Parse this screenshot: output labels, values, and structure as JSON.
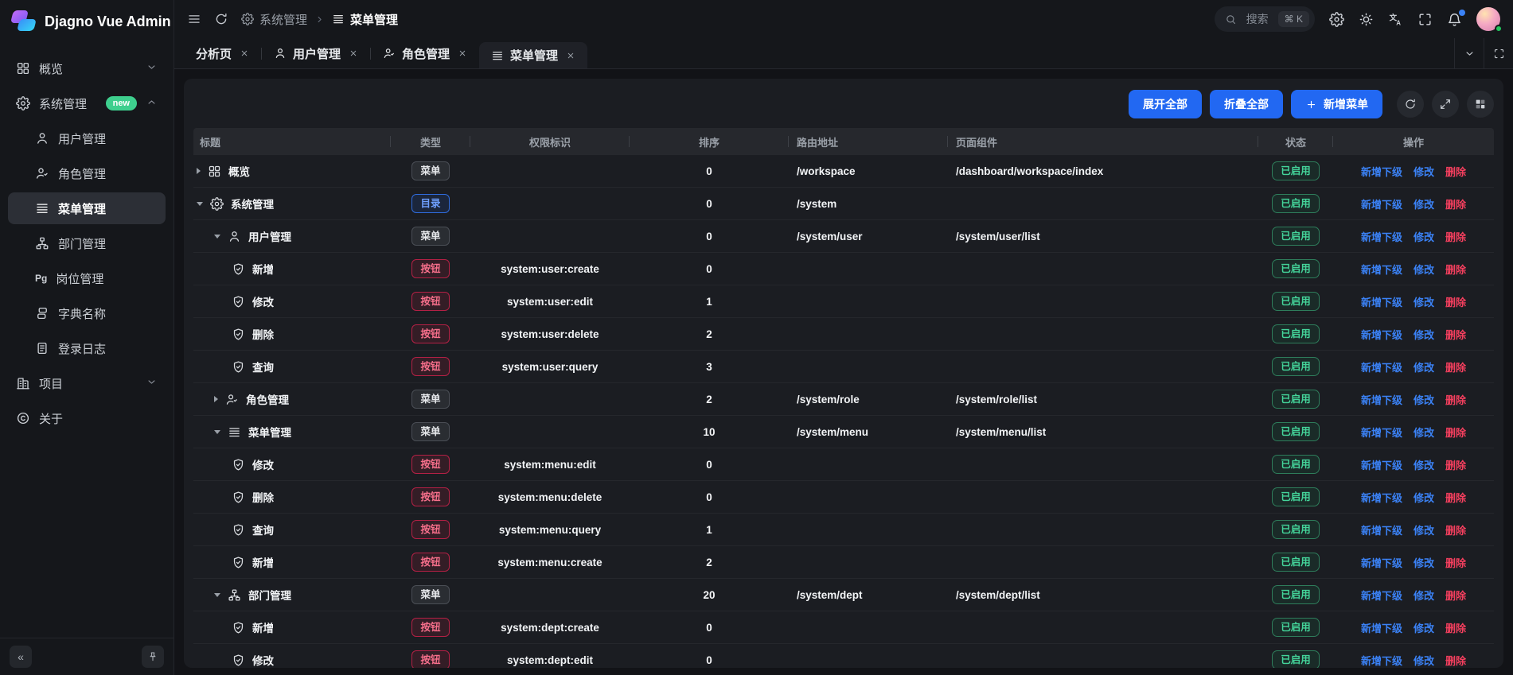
{
  "app": {
    "title": "Djagno Vue Admin"
  },
  "sidebar": {
    "items": [
      {
        "key": "overview",
        "label": "概览",
        "icon": "grid",
        "level": 0,
        "chevron": "down"
      },
      {
        "key": "system",
        "label": "系统管理",
        "icon": "gear",
        "level": 0,
        "chevron": "up",
        "badge": "new"
      },
      {
        "key": "user",
        "label": "用户管理",
        "icon": "user",
        "level": 1
      },
      {
        "key": "role",
        "label": "角色管理",
        "icon": "role",
        "level": 1
      },
      {
        "key": "menu",
        "label": "菜单管理",
        "icon": "menu",
        "level": 1,
        "active": true
      },
      {
        "key": "dept",
        "label": "部门管理",
        "icon": "dept",
        "level": 1
      },
      {
        "key": "post",
        "label": "岗位管理",
        "icon": "post",
        "level": 1
      },
      {
        "key": "dict",
        "label": "字典名称",
        "icon": "dict",
        "level": 1
      },
      {
        "key": "log",
        "label": "登录日志",
        "icon": "log",
        "level": 1
      },
      {
        "key": "project",
        "label": "项目",
        "icon": "project",
        "level": 0,
        "chevron": "down"
      },
      {
        "key": "about",
        "label": "关于",
        "icon": "about",
        "level": 0
      }
    ]
  },
  "topbar": {
    "breadcrumb": [
      {
        "label": "系统管理",
        "icon": "gear"
      },
      {
        "label": "菜单管理",
        "icon": "menu"
      }
    ],
    "search": {
      "placeholder": "搜索",
      "shortcut": "⌘ K"
    }
  },
  "tabs": [
    {
      "key": "analysis",
      "label": "分析页"
    },
    {
      "key": "user",
      "label": "用户管理",
      "icon": "user"
    },
    {
      "key": "role",
      "label": "角色管理",
      "icon": "role"
    },
    {
      "key": "menu",
      "label": "菜单管理",
      "icon": "menu",
      "active": true
    }
  ],
  "toolbar": {
    "expand_all": "展开全部",
    "collapse_all": "折叠全部",
    "add_menu": "新增菜单"
  },
  "table": {
    "columns": [
      "标题",
      "类型",
      "权限标识",
      "排序",
      "路由地址",
      "页面组件",
      "状态",
      "操作"
    ],
    "type_labels": {
      "menu": "菜单",
      "dir": "目录",
      "button": "按钮"
    },
    "status_enabled": "已启用",
    "actions": {
      "add_child": "新增下级",
      "edit": "修改",
      "delete": "删除"
    },
    "rows": [
      {
        "level": 0,
        "arrow": "right",
        "icon": "grid",
        "title": "概览",
        "type": "menu",
        "perm": "",
        "sort": "0",
        "route": "/workspace",
        "component": "/dashboard/workspace/index"
      },
      {
        "level": 0,
        "arrow": "down",
        "icon": "gear",
        "title": "系统管理",
        "type": "dir",
        "perm": "",
        "sort": "0",
        "route": "/system",
        "component": ""
      },
      {
        "level": 1,
        "arrow": "down",
        "icon": "user",
        "title": "用户管理",
        "type": "menu",
        "perm": "",
        "sort": "0",
        "route": "/system/user",
        "component": "/system/user/list"
      },
      {
        "level": 2,
        "arrow": null,
        "icon": "shield",
        "title": "新增",
        "type": "button",
        "perm": "system:user:create",
        "sort": "0",
        "route": "",
        "component": ""
      },
      {
        "level": 2,
        "arrow": null,
        "icon": "shield",
        "title": "修改",
        "type": "button",
        "perm": "system:user:edit",
        "sort": "1",
        "route": "",
        "component": ""
      },
      {
        "level": 2,
        "arrow": null,
        "icon": "shield",
        "title": "删除",
        "type": "button",
        "perm": "system:user:delete",
        "sort": "2",
        "route": "",
        "component": ""
      },
      {
        "level": 2,
        "arrow": null,
        "icon": "shield",
        "title": "查询",
        "type": "button",
        "perm": "system:user:query",
        "sort": "3",
        "route": "",
        "component": ""
      },
      {
        "level": 1,
        "arrow": "right",
        "icon": "role",
        "title": "角色管理",
        "type": "menu",
        "perm": "",
        "sort": "2",
        "route": "/system/role",
        "component": "/system/role/list"
      },
      {
        "level": 1,
        "arrow": "down",
        "icon": "menu",
        "title": "菜单管理",
        "type": "menu",
        "perm": "",
        "sort": "10",
        "route": "/system/menu",
        "component": "/system/menu/list"
      },
      {
        "level": 2,
        "arrow": null,
        "icon": "shield",
        "title": "修改",
        "type": "button",
        "perm": "system:menu:edit",
        "sort": "0",
        "route": "",
        "component": ""
      },
      {
        "level": 2,
        "arrow": null,
        "icon": "shield",
        "title": "删除",
        "type": "button",
        "perm": "system:menu:delete",
        "sort": "0",
        "route": "",
        "component": ""
      },
      {
        "level": 2,
        "arrow": null,
        "icon": "shield",
        "title": "查询",
        "type": "button",
        "perm": "system:menu:query",
        "sort": "1",
        "route": "",
        "component": ""
      },
      {
        "level": 2,
        "arrow": null,
        "icon": "shield",
        "title": "新增",
        "type": "button",
        "perm": "system:menu:create",
        "sort": "2",
        "route": "",
        "component": ""
      },
      {
        "level": 1,
        "arrow": "down",
        "icon": "dept",
        "title": "部门管理",
        "type": "menu",
        "perm": "",
        "sort": "20",
        "route": "/system/dept",
        "component": "/system/dept/list"
      },
      {
        "level": 2,
        "arrow": null,
        "icon": "shield",
        "title": "新增",
        "type": "button",
        "perm": "system:dept:create",
        "sort": "0",
        "route": "",
        "component": ""
      },
      {
        "level": 2,
        "arrow": null,
        "icon": "shield",
        "title": "修改",
        "type": "button",
        "perm": "system:dept:edit",
        "sort": "0",
        "route": "",
        "component": ""
      }
    ]
  },
  "colors": {
    "primary": "#2268f2",
    "link_blue": "#3b82f6",
    "link_red": "#f43f5e",
    "status_green": "#44d49a",
    "badge_new": "#3ecf8e",
    "notification_dot": "#3b82f6",
    "online_dot": "#22c55e"
  }
}
